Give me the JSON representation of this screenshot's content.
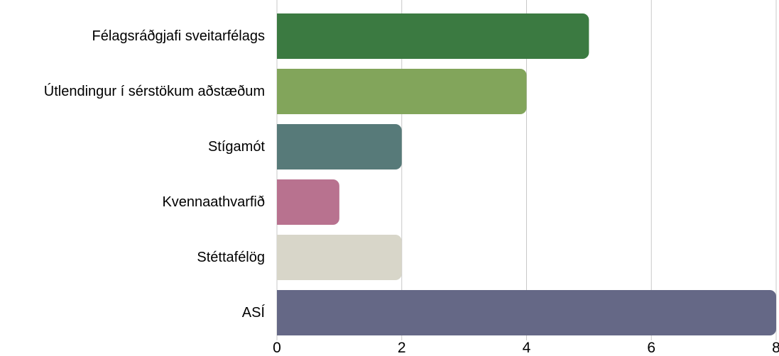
{
  "chart_data": {
    "type": "bar",
    "orientation": "horizontal",
    "categories": [
      "Félagsráðgjafi sveitarfélags",
      "Útlendingur í sérstökum aðstæðum",
      "Stígamót",
      "Kvennaathvarfið",
      "Stéttafélög",
      "ASÍ"
    ],
    "values": [
      5,
      4,
      2,
      1,
      2,
      8
    ],
    "colors": [
      "#3b7a41",
      "#82a55b",
      "#577a79",
      "#b8728f",
      "#d8d6c9",
      "#656886"
    ],
    "xlim": [
      0,
      8
    ],
    "xticks": [
      0,
      2,
      4,
      6,
      8
    ],
    "xtick_labels": [
      "0",
      "2",
      "4",
      "6",
      "8"
    ],
    "gridlines": true,
    "grid_color": "#c8c8c8",
    "legend": "none"
  }
}
